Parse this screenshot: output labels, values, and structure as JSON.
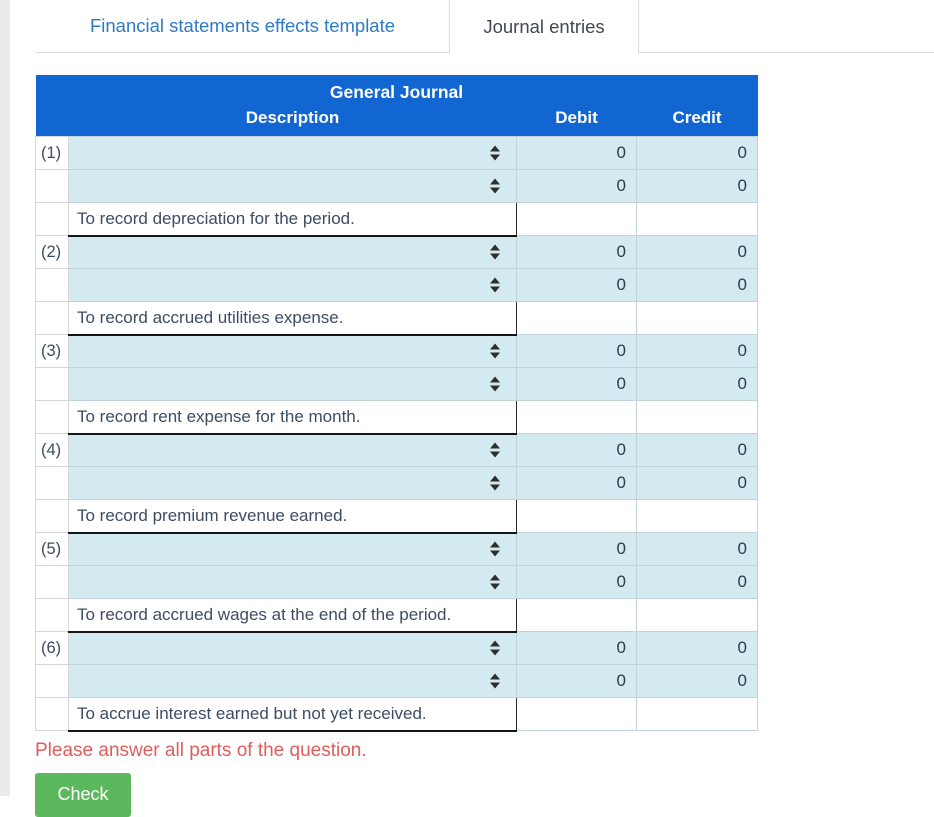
{
  "tabs": [
    {
      "label": "Financial statements effects template",
      "active": false
    },
    {
      "label": "Journal entries",
      "active": true
    }
  ],
  "table": {
    "title": "General Journal",
    "columns": {
      "description": "Description",
      "debit": "Debit",
      "credit": "Credit"
    },
    "entries": [
      {
        "number": "(1)",
        "lines": [
          {
            "debit": "0",
            "credit": "0"
          },
          {
            "debit": "0",
            "credit": "0"
          }
        ],
        "memo": "To record depreciation for the period."
      },
      {
        "number": "(2)",
        "lines": [
          {
            "debit": "0",
            "credit": "0"
          },
          {
            "debit": "0",
            "credit": "0"
          }
        ],
        "memo": "To record accrued utilities expense."
      },
      {
        "number": "(3)",
        "lines": [
          {
            "debit": "0",
            "credit": "0"
          },
          {
            "debit": "0",
            "credit": "0"
          }
        ],
        "memo": "To record rent expense for the month."
      },
      {
        "number": "(4)",
        "lines": [
          {
            "debit": "0",
            "credit": "0"
          },
          {
            "debit": "0",
            "credit": "0"
          }
        ],
        "memo": "To record premium revenue earned."
      },
      {
        "number": "(5)",
        "lines": [
          {
            "debit": "0",
            "credit": "0"
          },
          {
            "debit": "0",
            "credit": "0"
          }
        ],
        "memo": "To record accrued wages at the end of the period."
      },
      {
        "number": "(6)",
        "lines": [
          {
            "debit": "0",
            "credit": "0"
          },
          {
            "debit": "0",
            "credit": "0"
          }
        ],
        "memo": "To accrue interest earned but not yet received."
      }
    ]
  },
  "validation_message": "Please answer all parts of the question.",
  "check_button_label": "Check",
  "icons": {
    "dropdown": "up-down-arrows-icon"
  },
  "colors": {
    "header_blue": "#1266d1",
    "cell_light_blue": "#d4eaf1",
    "tab_link_blue": "#2e7bc1",
    "alert_red": "#e15c5c",
    "check_green": "#5cb85c"
  }
}
